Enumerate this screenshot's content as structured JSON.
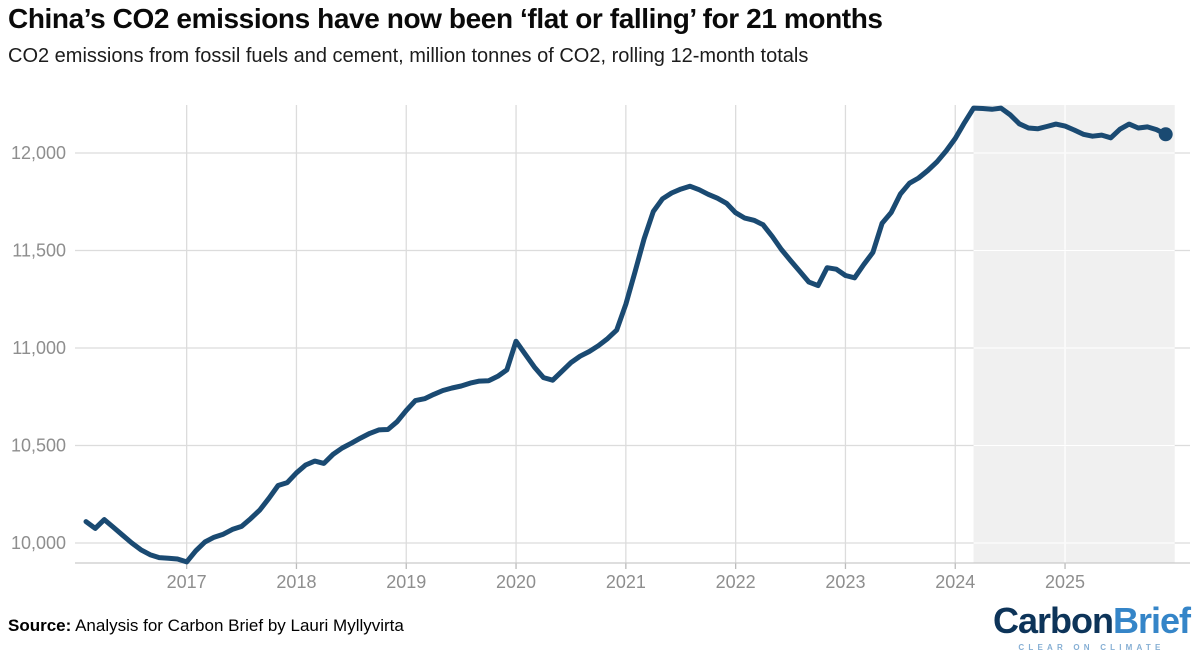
{
  "chart_data": {
    "type": "line",
    "title": "China’s CO2 emissions have now been ‘flat or falling’ for 21 months",
    "subtitle": "CO2 emissions from fossil fuels and cement, million tonnes of CO2, rolling 12-month totals",
    "xlabel": "",
    "ylabel": "Million tonnes of CO2, rolling 12-month total",
    "ylim": [
      9850,
      12300
    ],
    "yticks": [
      10000,
      10500,
      11000,
      11500,
      12000
    ],
    "ytick_labels": [
      "10,000",
      "10,500",
      "11,000",
      "11,500",
      "12,000"
    ],
    "xticks": [
      2017,
      2018,
      2019,
      2020,
      2021,
      2022,
      2023,
      2024,
      2025
    ],
    "grid": true,
    "legend": false,
    "last_point_marker": true,
    "colors": {
      "line": "#1a4a72",
      "shade": "#f0f0f0",
      "grid": "#dcdcdc",
      "axis_line": "#c9c9c9",
      "tick": "#bbbbbb",
      "axis_text": "#8e8e8e"
    },
    "annotations": {
      "shaded_region": {
        "start": "2024-03",
        "end": "2025-12",
        "meaning": "period of flat or falling emissions (21 months)"
      }
    },
    "series": [
      {
        "name": "China CO2 emissions from fossil fuels and cement, 12-month rolling total (million tonnes)",
        "points": [
          [
            "2016-02",
            10110
          ],
          [
            "2016-03",
            10075
          ],
          [
            "2016-04",
            10120
          ],
          [
            "2016-05",
            10080
          ],
          [
            "2016-06",
            10040
          ],
          [
            "2016-07",
            10000
          ],
          [
            "2016-08",
            9965
          ],
          [
            "2016-09",
            9940
          ],
          [
            "2016-10",
            9925
          ],
          [
            "2016-11",
            9922
          ],
          [
            "2016-12",
            9918
          ],
          [
            "2017-01",
            9903
          ],
          [
            "2017-02",
            9960
          ],
          [
            "2017-03",
            10005
          ],
          [
            "2017-04",
            10030
          ],
          [
            "2017-05",
            10045
          ],
          [
            "2017-06",
            10070
          ],
          [
            "2017-07",
            10085
          ],
          [
            "2017-08",
            10125
          ],
          [
            "2017-09",
            10170
          ],
          [
            "2017-10",
            10230
          ],
          [
            "2017-11",
            10295
          ],
          [
            "2017-12",
            10310
          ],
          [
            "2018-01",
            10360
          ],
          [
            "2018-02",
            10400
          ],
          [
            "2018-03",
            10420
          ],
          [
            "2018-04",
            10408
          ],
          [
            "2018-05",
            10455
          ],
          [
            "2018-06",
            10487
          ],
          [
            "2018-07",
            10512
          ],
          [
            "2018-08",
            10538
          ],
          [
            "2018-09",
            10562
          ],
          [
            "2018-10",
            10580
          ],
          [
            "2018-11",
            10582
          ],
          [
            "2018-12",
            10622
          ],
          [
            "2019-01",
            10680
          ],
          [
            "2019-02",
            10730
          ],
          [
            "2019-03",
            10740
          ],
          [
            "2019-04",
            10762
          ],
          [
            "2019-05",
            10782
          ],
          [
            "2019-06",
            10795
          ],
          [
            "2019-07",
            10805
          ],
          [
            "2019-08",
            10820
          ],
          [
            "2019-09",
            10830
          ],
          [
            "2019-10",
            10832
          ],
          [
            "2019-11",
            10855
          ],
          [
            "2019-12",
            10888
          ],
          [
            "2020-01",
            11035
          ],
          [
            "2020-02",
            10968
          ],
          [
            "2020-03",
            10902
          ],
          [
            "2020-04",
            10848
          ],
          [
            "2020-05",
            10835
          ],
          [
            "2020-06",
            10880
          ],
          [
            "2020-07",
            10925
          ],
          [
            "2020-08",
            10958
          ],
          [
            "2020-09",
            10982
          ],
          [
            "2020-10",
            11012
          ],
          [
            "2020-11",
            11048
          ],
          [
            "2020-12",
            11092
          ],
          [
            "2021-01",
            11225
          ],
          [
            "2021-02",
            11390
          ],
          [
            "2021-03",
            11560
          ],
          [
            "2021-04",
            11700
          ],
          [
            "2021-05",
            11765
          ],
          [
            "2021-06",
            11795
          ],
          [
            "2021-07",
            11815
          ],
          [
            "2021-08",
            11830
          ],
          [
            "2021-09",
            11812
          ],
          [
            "2021-10",
            11788
          ],
          [
            "2021-11",
            11768
          ],
          [
            "2021-12",
            11742
          ],
          [
            "2022-01",
            11694
          ],
          [
            "2022-02",
            11666
          ],
          [
            "2022-03",
            11655
          ],
          [
            "2022-04",
            11632
          ],
          [
            "2022-05",
            11572
          ],
          [
            "2022-06",
            11505
          ],
          [
            "2022-07",
            11448
          ],
          [
            "2022-08",
            11394
          ],
          [
            "2022-09",
            11338
          ],
          [
            "2022-10",
            11320
          ],
          [
            "2022-11",
            11412
          ],
          [
            "2022-12",
            11404
          ],
          [
            "2023-01",
            11372
          ],
          [
            "2023-02",
            11360
          ],
          [
            "2023-03",
            11428
          ],
          [
            "2023-04",
            11490
          ],
          [
            "2023-05",
            11640
          ],
          [
            "2023-06",
            11695
          ],
          [
            "2023-07",
            11790
          ],
          [
            "2023-08",
            11845
          ],
          [
            "2023-09",
            11872
          ],
          [
            "2023-10",
            11910
          ],
          [
            "2023-11",
            11955
          ],
          [
            "2023-12",
            12010
          ],
          [
            "2024-01",
            12075
          ],
          [
            "2024-02",
            12155
          ],
          [
            "2024-03",
            12230
          ],
          [
            "2024-04",
            12228
          ],
          [
            "2024-05",
            12224
          ],
          [
            "2024-06",
            12230
          ],
          [
            "2024-07",
            12196
          ],
          [
            "2024-08",
            12150
          ],
          [
            "2024-09",
            12128
          ],
          [
            "2024-10",
            12124
          ],
          [
            "2024-11",
            12136
          ],
          [
            "2024-12",
            12148
          ],
          [
            "2025-01",
            12138
          ],
          [
            "2025-02",
            12118
          ],
          [
            "2025-03",
            12096
          ],
          [
            "2025-04",
            12086
          ],
          [
            "2025-05",
            12092
          ],
          [
            "2025-06",
            12078
          ],
          [
            "2025-07",
            12122
          ],
          [
            "2025-08",
            12148
          ],
          [
            "2025-09",
            12128
          ],
          [
            "2025-10",
            12134
          ],
          [
            "2025-11",
            12120
          ],
          [
            "2025-12",
            12096
          ]
        ]
      }
    ]
  },
  "footer": {
    "source_label": "Source:",
    "source_text": " Analysis for Carbon Brief by Lauri Myllyvirta",
    "logo": {
      "part1": "Carbon",
      "part2": "Brief",
      "tagline": "CLEAR ON CLIMATE",
      "navy": "#0d3459",
      "blue": "#3585c8",
      "tagline_color": "#86afd4"
    }
  }
}
